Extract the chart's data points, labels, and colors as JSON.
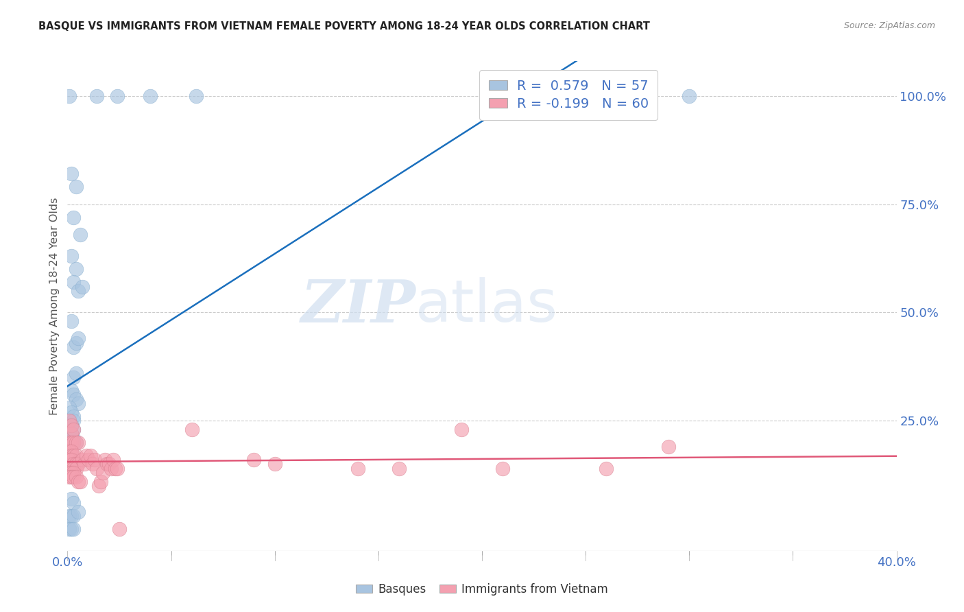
{
  "title": "BASQUE VS IMMIGRANTS FROM VIETNAM FEMALE POVERTY AMONG 18-24 YEAR OLDS CORRELATION CHART",
  "source": "Source: ZipAtlas.com",
  "ylabel": "Female Poverty Among 18-24 Year Olds",
  "ylabel_right_ticks": [
    "100.0%",
    "75.0%",
    "50.0%",
    "25.0%"
  ],
  "ylabel_right_vals": [
    1.0,
    0.75,
    0.5,
    0.25
  ],
  "xmin": 0.0,
  "xmax": 0.4,
  "ymin": -0.05,
  "ymax": 1.08,
  "legend_basque_R": "0.579",
  "legend_basque_N": "57",
  "legend_vietnam_R": "-0.199",
  "legend_vietnam_N": "60",
  "basque_color": "#a8c4e0",
  "vietnam_color": "#f4a0b0",
  "trendline_basque_color": "#1a6fbd",
  "trendline_vietnam_color": "#e05878",
  "watermark_zip": "ZIP",
  "watermark_atlas": "atlas",
  "basque_points": [
    [
      0.001,
      1.0
    ],
    [
      0.014,
      1.0
    ],
    [
      0.024,
      1.0
    ],
    [
      0.04,
      1.0
    ],
    [
      0.062,
      1.0
    ],
    [
      0.3,
      1.0
    ],
    [
      0.002,
      0.82
    ],
    [
      0.004,
      0.79
    ],
    [
      0.003,
      0.72
    ],
    [
      0.006,
      0.68
    ],
    [
      0.002,
      0.63
    ],
    [
      0.004,
      0.6
    ],
    [
      0.003,
      0.57
    ],
    [
      0.005,
      0.55
    ],
    [
      0.007,
      0.56
    ],
    [
      0.002,
      0.48
    ],
    [
      0.003,
      0.42
    ],
    [
      0.004,
      0.43
    ],
    [
      0.005,
      0.44
    ],
    [
      0.003,
      0.35
    ],
    [
      0.004,
      0.36
    ],
    [
      0.002,
      0.32
    ],
    [
      0.003,
      0.31
    ],
    [
      0.004,
      0.3
    ],
    [
      0.005,
      0.29
    ],
    [
      0.001,
      0.28
    ],
    [
      0.002,
      0.27
    ],
    [
      0.003,
      0.26
    ],
    [
      0.003,
      0.25
    ],
    [
      0.001,
      0.24
    ],
    [
      0.002,
      0.24
    ],
    [
      0.003,
      0.23
    ],
    [
      0.001,
      0.22
    ],
    [
      0.002,
      0.22
    ],
    [
      0.002,
      0.21
    ],
    [
      0.003,
      0.21
    ],
    [
      0.001,
      0.2
    ],
    [
      0.002,
      0.2
    ],
    [
      0.003,
      0.2
    ],
    [
      0.004,
      0.2
    ],
    [
      0.001,
      0.18
    ],
    [
      0.002,
      0.18
    ],
    [
      0.002,
      0.17
    ],
    [
      0.001,
      0.16
    ],
    [
      0.002,
      0.16
    ],
    [
      0.003,
      0.16
    ],
    [
      0.001,
      0.13
    ],
    [
      0.002,
      0.13
    ],
    [
      0.002,
      0.07
    ],
    [
      0.003,
      0.06
    ],
    [
      0.001,
      0.03
    ],
    [
      0.002,
      0.03
    ],
    [
      0.003,
      0.03
    ],
    [
      0.005,
      0.04
    ],
    [
      0.001,
      0.0
    ],
    [
      0.002,
      0.0
    ],
    [
      0.003,
      0.0
    ]
  ],
  "vietnam_points": [
    [
      0.001,
      0.25
    ],
    [
      0.002,
      0.22
    ],
    [
      0.002,
      0.24
    ],
    [
      0.003,
      0.23
    ],
    [
      0.001,
      0.2
    ],
    [
      0.002,
      0.2
    ],
    [
      0.003,
      0.2
    ],
    [
      0.004,
      0.2
    ],
    [
      0.005,
      0.2
    ],
    [
      0.001,
      0.18
    ],
    [
      0.002,
      0.18
    ],
    [
      0.002,
      0.17
    ],
    [
      0.003,
      0.17
    ],
    [
      0.004,
      0.17
    ],
    [
      0.001,
      0.16
    ],
    [
      0.002,
      0.16
    ],
    [
      0.003,
      0.15
    ],
    [
      0.004,
      0.15
    ],
    [
      0.005,
      0.15
    ],
    [
      0.001,
      0.14
    ],
    [
      0.002,
      0.14
    ],
    [
      0.003,
      0.14
    ],
    [
      0.004,
      0.14
    ],
    [
      0.001,
      0.13
    ],
    [
      0.002,
      0.13
    ],
    [
      0.003,
      0.13
    ],
    [
      0.001,
      0.12
    ],
    [
      0.002,
      0.12
    ],
    [
      0.003,
      0.12
    ],
    [
      0.004,
      0.12
    ],
    [
      0.005,
      0.11
    ],
    [
      0.006,
      0.11
    ],
    [
      0.007,
      0.16
    ],
    [
      0.008,
      0.15
    ],
    [
      0.009,
      0.17
    ],
    [
      0.01,
      0.16
    ],
    [
      0.011,
      0.17
    ],
    [
      0.012,
      0.15
    ],
    [
      0.013,
      0.16
    ],
    [
      0.014,
      0.14
    ],
    [
      0.015,
      0.1
    ],
    [
      0.016,
      0.11
    ],
    [
      0.017,
      0.13
    ],
    [
      0.018,
      0.16
    ],
    [
      0.019,
      0.15
    ],
    [
      0.02,
      0.15
    ],
    [
      0.021,
      0.14
    ],
    [
      0.022,
      0.16
    ],
    [
      0.023,
      0.14
    ],
    [
      0.024,
      0.14
    ],
    [
      0.025,
      0.0
    ],
    [
      0.06,
      0.23
    ],
    [
      0.09,
      0.16
    ],
    [
      0.1,
      0.15
    ],
    [
      0.14,
      0.14
    ],
    [
      0.16,
      0.14
    ],
    [
      0.19,
      0.23
    ],
    [
      0.21,
      0.14
    ],
    [
      0.26,
      0.14
    ],
    [
      0.29,
      0.19
    ]
  ]
}
